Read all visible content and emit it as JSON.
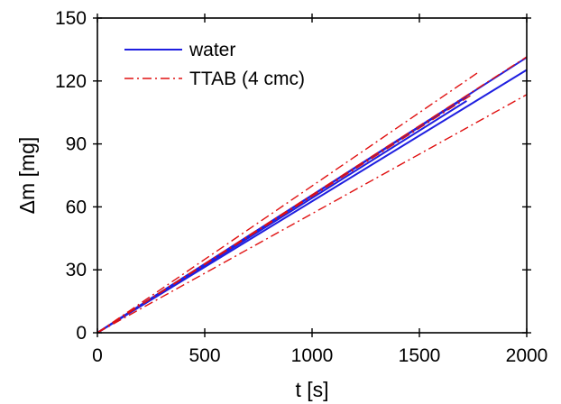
{
  "chart_data": {
    "type": "line",
    "title": "",
    "xlabel": "t  [s]",
    "ylabel": "Δm  [mg]",
    "xlim": [
      0,
      2000
    ],
    "ylim": [
      0,
      150
    ],
    "xticks": [
      0,
      500,
      1000,
      1500,
      2000
    ],
    "yticks": [
      0,
      30,
      60,
      90,
      120,
      150
    ],
    "xtick_labels": [
      "0",
      "500",
      "1000",
      "1500",
      "2000"
    ],
    "ytick_labels": [
      "0",
      "30",
      "60",
      "90",
      "120",
      "150"
    ],
    "grid": false,
    "legend": {
      "placement": "top-left",
      "entries": [
        {
          "label": "water",
          "color": "#1f1fe0",
          "style": "solid"
        },
        {
          "label": "TTAB (4 cmc)",
          "color": "#e01010",
          "style": "dash-dot"
        }
      ]
    },
    "series": [
      {
        "name": "water",
        "color": "#1f1fe0",
        "style": "solid",
        "x": [
          0,
          2000
        ],
        "y": [
          0,
          125.3
        ]
      },
      {
        "name": "water",
        "color": "#1f1fe0",
        "style": "solid",
        "x": [
          0,
          1720
        ],
        "y": [
          0,
          110.5
        ]
      },
      {
        "name": "water",
        "color": "#1f1fe0",
        "style": "solid",
        "x": [
          0,
          1720
        ],
        "y": [
          0,
          112.5
        ]
      },
      {
        "name": "water",
        "color": "#1f1fe0",
        "style": "solid",
        "x": [
          0,
          2000
        ],
        "y": [
          0,
          131.2
        ]
      },
      {
        "name": "TTAB (4 cmc)",
        "color": "#e01010",
        "style": "dash-dot",
        "x": [
          0,
          2000
        ],
        "y": [
          0,
          113.5
        ]
      },
      {
        "name": "TTAB (4 cmc)",
        "color": "#e01010",
        "style": "dash-dot",
        "x": [
          0,
          1780
        ],
        "y": [
          0,
          124.5
        ]
      },
      {
        "name": "TTAB (4 cmc)",
        "color": "#e01010",
        "style": "dash-dot",
        "x": [
          0,
          2000
        ],
        "y": [
          0,
          131.5
        ]
      },
      {
        "name": "TTAB (4 cmc)",
        "color": "#e01010",
        "style": "dash-dot",
        "x": [
          0,
          1750
        ],
        "y": [
          0,
          113.8
        ]
      }
    ]
  }
}
